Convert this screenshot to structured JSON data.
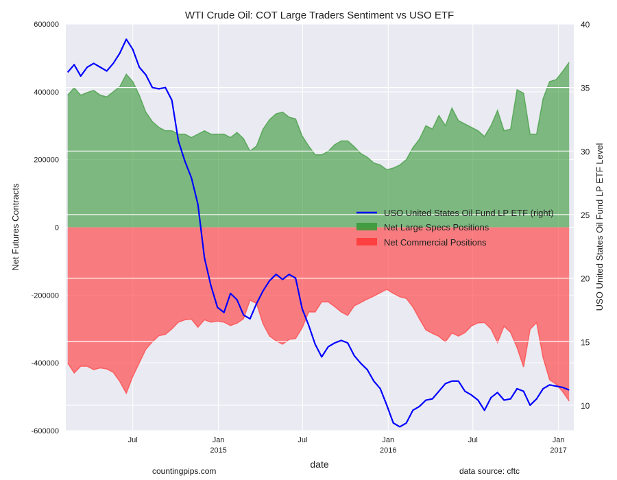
{
  "chart_data": {
    "type": "area",
    "title": "WTI Crude Oil: COT Large Traders Sentiment vs USO ETF",
    "xlabel": "date",
    "ylabel": "Net Futures Contracts",
    "ylabel_right": "USO United States Oil Fund LP ETF Level",
    "ylim": [
      -600000,
      600000
    ],
    "ylim_right": [
      8,
      40
    ],
    "xlim": [
      "2014-02-07",
      "2017-02-03"
    ],
    "grid": true,
    "legend_position": "center-right",
    "y_ticks": [
      600000,
      400000,
      200000,
      0,
      -200000,
      -400000,
      -600000
    ],
    "y_tick_labels": [
      "600000",
      "400000",
      "200000",
      "0",
      "-200000",
      "-400000",
      "-600000"
    ],
    "y_right_ticks": [
      40,
      35,
      30,
      25,
      20,
      15,
      10
    ],
    "y_right_tick_labels": [
      "40",
      "35",
      "30",
      "25",
      "20",
      "15",
      "10"
    ],
    "x_ticks": [
      {
        "date": "2014-07-01",
        "label": "Jul",
        "sublabel": ""
      },
      {
        "date": "2015-01-01",
        "label": "Jan",
        "sublabel": "2015"
      },
      {
        "date": "2015-07-01",
        "label": "Jul",
        "sublabel": ""
      },
      {
        "date": "2016-01-01",
        "label": "Jan",
        "sublabel": "2016"
      },
      {
        "date": "2016-07-01",
        "label": "Jul",
        "sublabel": ""
      },
      {
        "date": "2017-01-01",
        "label": "Jan",
        "sublabel": "2017"
      }
    ],
    "dates": [
      "2014-02-11",
      "2014-02-25",
      "2014-03-11",
      "2014-03-25",
      "2014-04-08",
      "2014-04-22",
      "2014-05-06",
      "2014-05-20",
      "2014-06-03",
      "2014-06-17",
      "2014-07-01",
      "2014-07-15",
      "2014-07-29",
      "2014-08-12",
      "2014-08-26",
      "2014-09-09",
      "2014-09-23",
      "2014-10-07",
      "2014-10-21",
      "2014-11-04",
      "2014-11-18",
      "2014-12-02",
      "2014-12-16",
      "2014-12-30",
      "2015-01-13",
      "2015-01-27",
      "2015-02-10",
      "2015-02-24",
      "2015-03-10",
      "2015-03-24",
      "2015-04-07",
      "2015-04-21",
      "2015-05-05",
      "2015-05-19",
      "2015-06-02",
      "2015-06-16",
      "2015-06-30",
      "2015-07-14",
      "2015-07-28",
      "2015-08-11",
      "2015-08-25",
      "2015-09-08",
      "2015-09-22",
      "2015-10-06",
      "2015-10-20",
      "2015-11-03",
      "2015-11-17",
      "2015-12-01",
      "2015-12-15",
      "2015-12-29",
      "2016-01-12",
      "2016-01-26",
      "2016-02-09",
      "2016-02-23",
      "2016-03-08",
      "2016-03-22",
      "2016-04-05",
      "2016-04-19",
      "2016-05-03",
      "2016-05-17",
      "2016-05-31",
      "2016-06-14",
      "2016-06-28",
      "2016-07-12",
      "2016-07-26",
      "2016-08-09",
      "2016-08-23",
      "2016-09-06",
      "2016-09-20",
      "2016-10-04",
      "2016-10-18",
      "2016-11-01",
      "2016-11-15",
      "2016-11-29",
      "2016-12-13",
      "2016-12-27",
      "2017-01-10",
      "2017-01-24"
    ],
    "series": [
      {
        "name": "USO United States Oil Fund LP ETF (right)",
        "axis": "right",
        "color": "#0000ff",
        "style": "line",
        "values": [
          36.2,
          36.8,
          35.9,
          36.6,
          36.9,
          36.6,
          36.3,
          36.9,
          37.7,
          38.8,
          38.0,
          36.6,
          36.0,
          35.0,
          34.9,
          35.0,
          34.0,
          30.8,
          29.2,
          27.9,
          25.8,
          21.6,
          19.4,
          17.7,
          17.3,
          18.8,
          18.3,
          17.1,
          16.8,
          18.0,
          19.0,
          19.8,
          20.3,
          19.9,
          20.3,
          20.0,
          17.6,
          16.3,
          14.8,
          13.8,
          14.6,
          14.9,
          15.1,
          14.9,
          13.9,
          13.3,
          12.8,
          11.9,
          11.3,
          10.0,
          8.6,
          8.3,
          8.6,
          9.6,
          9.9,
          10.4,
          10.5,
          11.1,
          11.7,
          11.9,
          11.9,
          11.1,
          10.8,
          10.4,
          9.6,
          10.6,
          11.0,
          10.4,
          10.5,
          11.3,
          11.1,
          10.0,
          10.5,
          11.3,
          11.6,
          11.5,
          11.4,
          11.2
        ]
      },
      {
        "name": "Net Large Specs Positions",
        "axis": "left",
        "color": "#3a9a3a",
        "style": "area",
        "values": [
          390000,
          412000,
          390000,
          398000,
          404000,
          390000,
          385000,
          400000,
          415000,
          452000,
          430000,
          390000,
          340000,
          312000,
          295000,
          285000,
          285000,
          275000,
          275000,
          265000,
          275000,
          285000,
          275000,
          275000,
          275000,
          265000,
          280000,
          262000,
          225000,
          240000,
          290000,
          318000,
          335000,
          340000,
          325000,
          320000,
          270000,
          240000,
          214000,
          214000,
          224000,
          244000,
          255000,
          255000,
          238000,
          218000,
          207000,
          190000,
          184000,
          170000,
          175000,
          184000,
          200000,
          235000,
          260000,
          300000,
          290000,
          330000,
          300000,
          352000,
          315000,
          305000,
          295000,
          285000,
          268000,
          300000,
          345000,
          285000,
          290000,
          406000,
          396000,
          275000,
          275000,
          380000,
          430000,
          436000,
          460000,
          487000
        ]
      },
      {
        "name": "Net Commercial Positions",
        "axis": "left",
        "color": "#ff4040",
        "style": "area",
        "values": [
          -400000,
          -430000,
          -410000,
          -410000,
          -420000,
          -415000,
          -418000,
          -428000,
          -455000,
          -490000,
          -440000,
          -400000,
          -360000,
          -338000,
          -320000,
          -316000,
          -300000,
          -280000,
          -273000,
          -271000,
          -295000,
          -273000,
          -280000,
          -277000,
          -280000,
          -290000,
          -283000,
          -270000,
          -215000,
          -225000,
          -285000,
          -321000,
          -335000,
          -345000,
          -331000,
          -328000,
          -297000,
          -250000,
          -250000,
          -220000,
          -220000,
          -234000,
          -250000,
          -260000,
          -232000,
          -222000,
          -212000,
          -203000,
          -193000,
          -183000,
          -195000,
          -205000,
          -210000,
          -235000,
          -270000,
          -303000,
          -313000,
          -322000,
          -338000,
          -312000,
          -321000,
          -311000,
          -291000,
          -282000,
          -281000,
          -300000,
          -340000,
          -292000,
          -310000,
          -355000,
          -412000,
          -301000,
          -281000,
          -385000,
          -450000,
          -463000,
          -485000,
          -513000
        ]
      }
    ]
  },
  "footer": {
    "left": "countingpips.com",
    "right": "data source: cftc"
  }
}
